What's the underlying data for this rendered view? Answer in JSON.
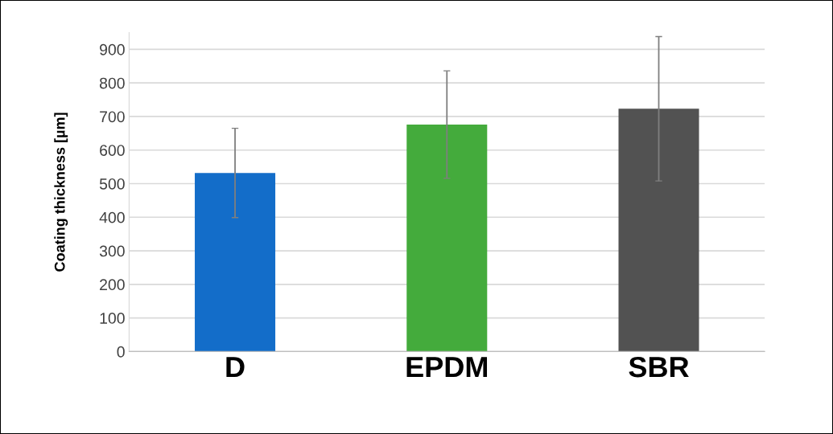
{
  "chart_data": {
    "type": "bar",
    "ylabel": "Coating thickness [µm]",
    "categories": [
      "D",
      "EPDM",
      "SBR"
    ],
    "values": [
      532,
      676,
      723
    ],
    "errors": [
      133,
      160,
      215
    ],
    "colors": [
      "#136dc9",
      "#44ab3c",
      "#525252"
    ],
    "ylim": [
      0,
      950
    ],
    "yticks": [
      0,
      100,
      200,
      300,
      400,
      500,
      600,
      700,
      800,
      900
    ],
    "grid": "y",
    "legend": false
  }
}
